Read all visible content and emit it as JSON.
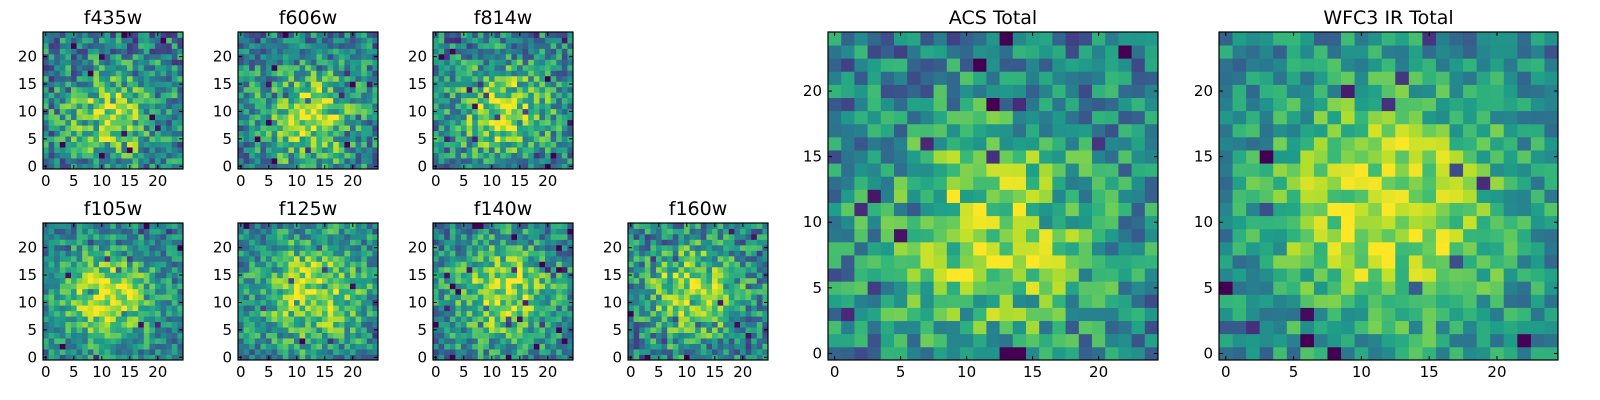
{
  "chart_data": [
    {
      "type": "heatmap",
      "title": "f435w",
      "xlim": [
        0,
        24
      ],
      "ylim": [
        0,
        24
      ],
      "xticks": [
        0,
        5,
        10,
        15,
        20
      ],
      "yticks": [
        0,
        5,
        10,
        15,
        20
      ],
      "grid": "off",
      "colormap": "viridis",
      "peak": [
        12,
        9
      ],
      "sigma": 5.5,
      "amplitude": 0.4,
      "noise": 0.3,
      "seed": 11
    },
    {
      "type": "heatmap",
      "title": "f606w",
      "xlim": [
        0,
        24
      ],
      "ylim": [
        0,
        24
      ],
      "xticks": [
        0,
        5,
        10,
        15,
        20
      ],
      "yticks": [
        0,
        5,
        10,
        15,
        20
      ],
      "grid": "off",
      "colormap": "viridis",
      "peak": [
        12,
        9
      ],
      "sigma": 6,
      "amplitude": 0.45,
      "noise": 0.28,
      "seed": 23
    },
    {
      "type": "heatmap",
      "title": "f814w",
      "xlim": [
        0,
        24
      ],
      "ylim": [
        0,
        24
      ],
      "xticks": [
        0,
        5,
        10,
        15,
        20
      ],
      "yticks": [
        0,
        5,
        10,
        15,
        20
      ],
      "grid": "off",
      "colormap": "viridis",
      "peak": [
        12,
        10
      ],
      "sigma": 6,
      "amplitude": 0.45,
      "noise": 0.28,
      "seed": 37
    },
    {
      "type": "heatmap",
      "title": "f105w",
      "xlim": [
        0,
        24
      ],
      "ylim": [
        0,
        24
      ],
      "xticks": [
        0,
        5,
        10,
        15,
        20
      ],
      "yticks": [
        0,
        5,
        10,
        15,
        20
      ],
      "grid": "off",
      "colormap": "viridis",
      "peak": [
        11,
        11
      ],
      "sigma": 6,
      "amplitude": 0.5,
      "noise": 0.22,
      "seed": 41
    },
    {
      "type": "heatmap",
      "title": "f125w",
      "xlim": [
        0,
        24
      ],
      "ylim": [
        0,
        24
      ],
      "xticks": [
        0,
        5,
        10,
        15,
        20
      ],
      "yticks": [
        0,
        5,
        10,
        15,
        20
      ],
      "grid": "off",
      "colormap": "viridis",
      "peak": [
        13,
        12
      ],
      "sigma": 7,
      "amplitude": 0.45,
      "noise": 0.25,
      "seed": 53
    },
    {
      "type": "heatmap",
      "title": "f140w",
      "xlim": [
        0,
        24
      ],
      "ylim": [
        0,
        24
      ],
      "xticks": [
        0,
        5,
        10,
        15,
        20
      ],
      "yticks": [
        0,
        5,
        10,
        15,
        20
      ],
      "grid": "off",
      "colormap": "viridis",
      "peak": [
        12,
        12
      ],
      "sigma": 6.5,
      "amplitude": 0.45,
      "noise": 0.25,
      "seed": 67
    },
    {
      "type": "heatmap",
      "title": "f160w",
      "xlim": [
        0,
        24
      ],
      "ylim": [
        0,
        24
      ],
      "xticks": [
        0,
        5,
        10,
        15,
        20
      ],
      "yticks": [
        0,
        5,
        10,
        15,
        20
      ],
      "grid": "off",
      "colormap": "viridis",
      "peak": [
        11,
        12
      ],
      "sigma": 6,
      "amplitude": 0.45,
      "noise": 0.28,
      "seed": 79
    },
    {
      "type": "heatmap",
      "title": "ACS Total",
      "xlim": [
        0,
        24
      ],
      "ylim": [
        0,
        24
      ],
      "xticks": [
        0,
        5,
        10,
        15,
        20
      ],
      "yticks": [
        0,
        5,
        10,
        15,
        20
      ],
      "grid": "off",
      "colormap": "viridis",
      "peak": [
        12,
        9
      ],
      "sigma": 6,
      "amplitude": 0.45,
      "noise": 0.25,
      "seed": 97
    },
    {
      "type": "heatmap",
      "title": "WFC3 IR Total",
      "xlim": [
        0,
        24
      ],
      "ylim": [
        0,
        24
      ],
      "xticks": [
        0,
        5,
        10,
        15,
        20
      ],
      "yticks": [
        0,
        5,
        10,
        15,
        20
      ],
      "grid": "off",
      "colormap": "viridis",
      "peak": [
        12,
        11
      ],
      "sigma": 7,
      "amplitude": 0.5,
      "noise": 0.2,
      "seed": 113
    }
  ]
}
